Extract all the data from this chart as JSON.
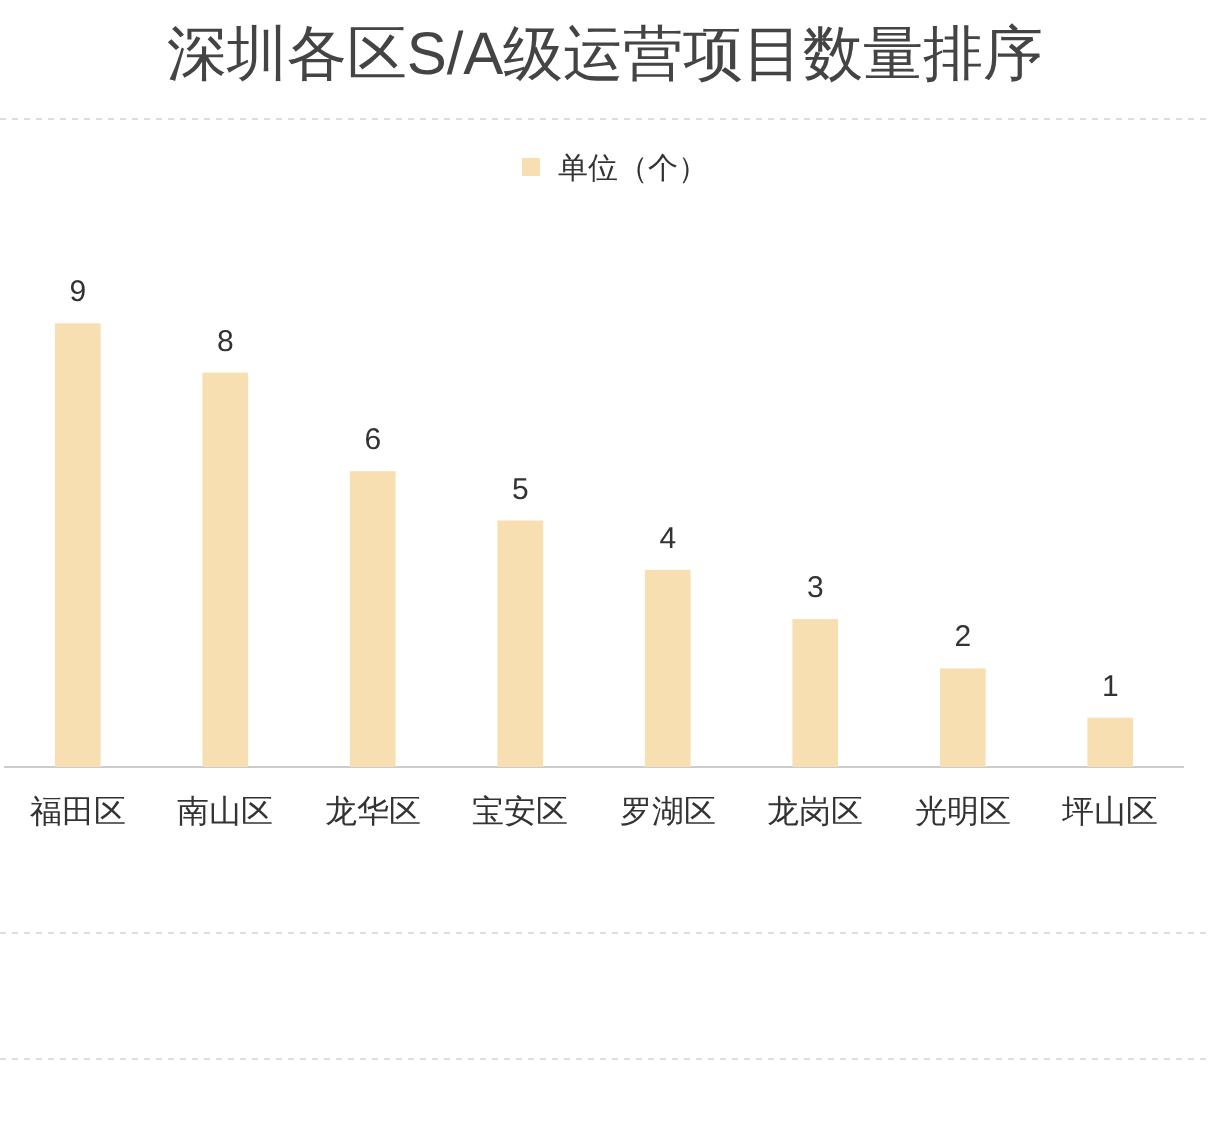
{
  "chart_data": {
    "type": "bar",
    "title": "深圳各区S/A级运营项目数量排序",
    "categories": [
      "福田区",
      "南山区",
      "龙华区",
      "宝安区",
      "罗湖区",
      "龙岗区",
      "光明区",
      "坪山区"
    ],
    "series": [
      {
        "name": "单位（个）",
        "color": "#f8dfb2",
        "values": [
          9,
          8,
          6,
          5,
          4,
          3,
          2,
          1
        ]
      }
    ],
    "data_labels": true,
    "legend": "top",
    "tick_labels": "x"
  }
}
